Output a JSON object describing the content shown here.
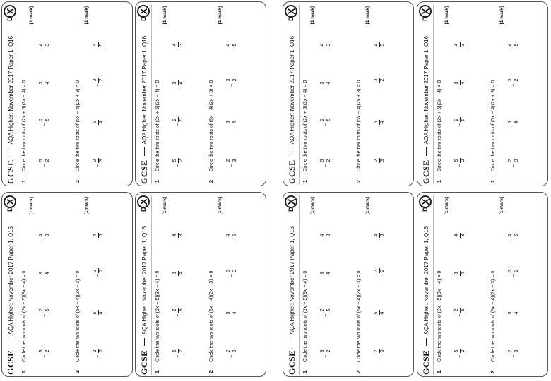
{
  "worksheet": {
    "brand": "GCSE",
    "logo_letter": "X",
    "logo_side": "D",
    "source": "AQA Higher: November 2017 Paper 1, Q16",
    "questions": [
      {
        "number": "1",
        "text": "Circle the two roots of (2x + 5)(3x − 4) = 0",
        "mark": "[1 mark]",
        "options": [
          {
            "neg": "−",
            "num": "5",
            "den": "2"
          },
          {
            "neg": "−",
            "num": "2",
            "den": "5"
          },
          {
            "neg": "",
            "num": "3",
            "den": "4"
          },
          {
            "neg": "",
            "num": "4",
            "den": "3"
          }
        ]
      },
      {
        "number": "2",
        "text": "Circle the two roots of (5x − 4)(2x + 3) = 0",
        "mark": "[1 mark]",
        "options": [
          {
            "neg": "−",
            "num": "2",
            "den": "3"
          },
          {
            "neg": "",
            "num": "5",
            "den": "4"
          },
          {
            "neg": "−",
            "num": "3",
            "den": "2"
          },
          {
            "neg": "",
            "num": "4",
            "den": "5"
          }
        ]
      }
    ]
  }
}
